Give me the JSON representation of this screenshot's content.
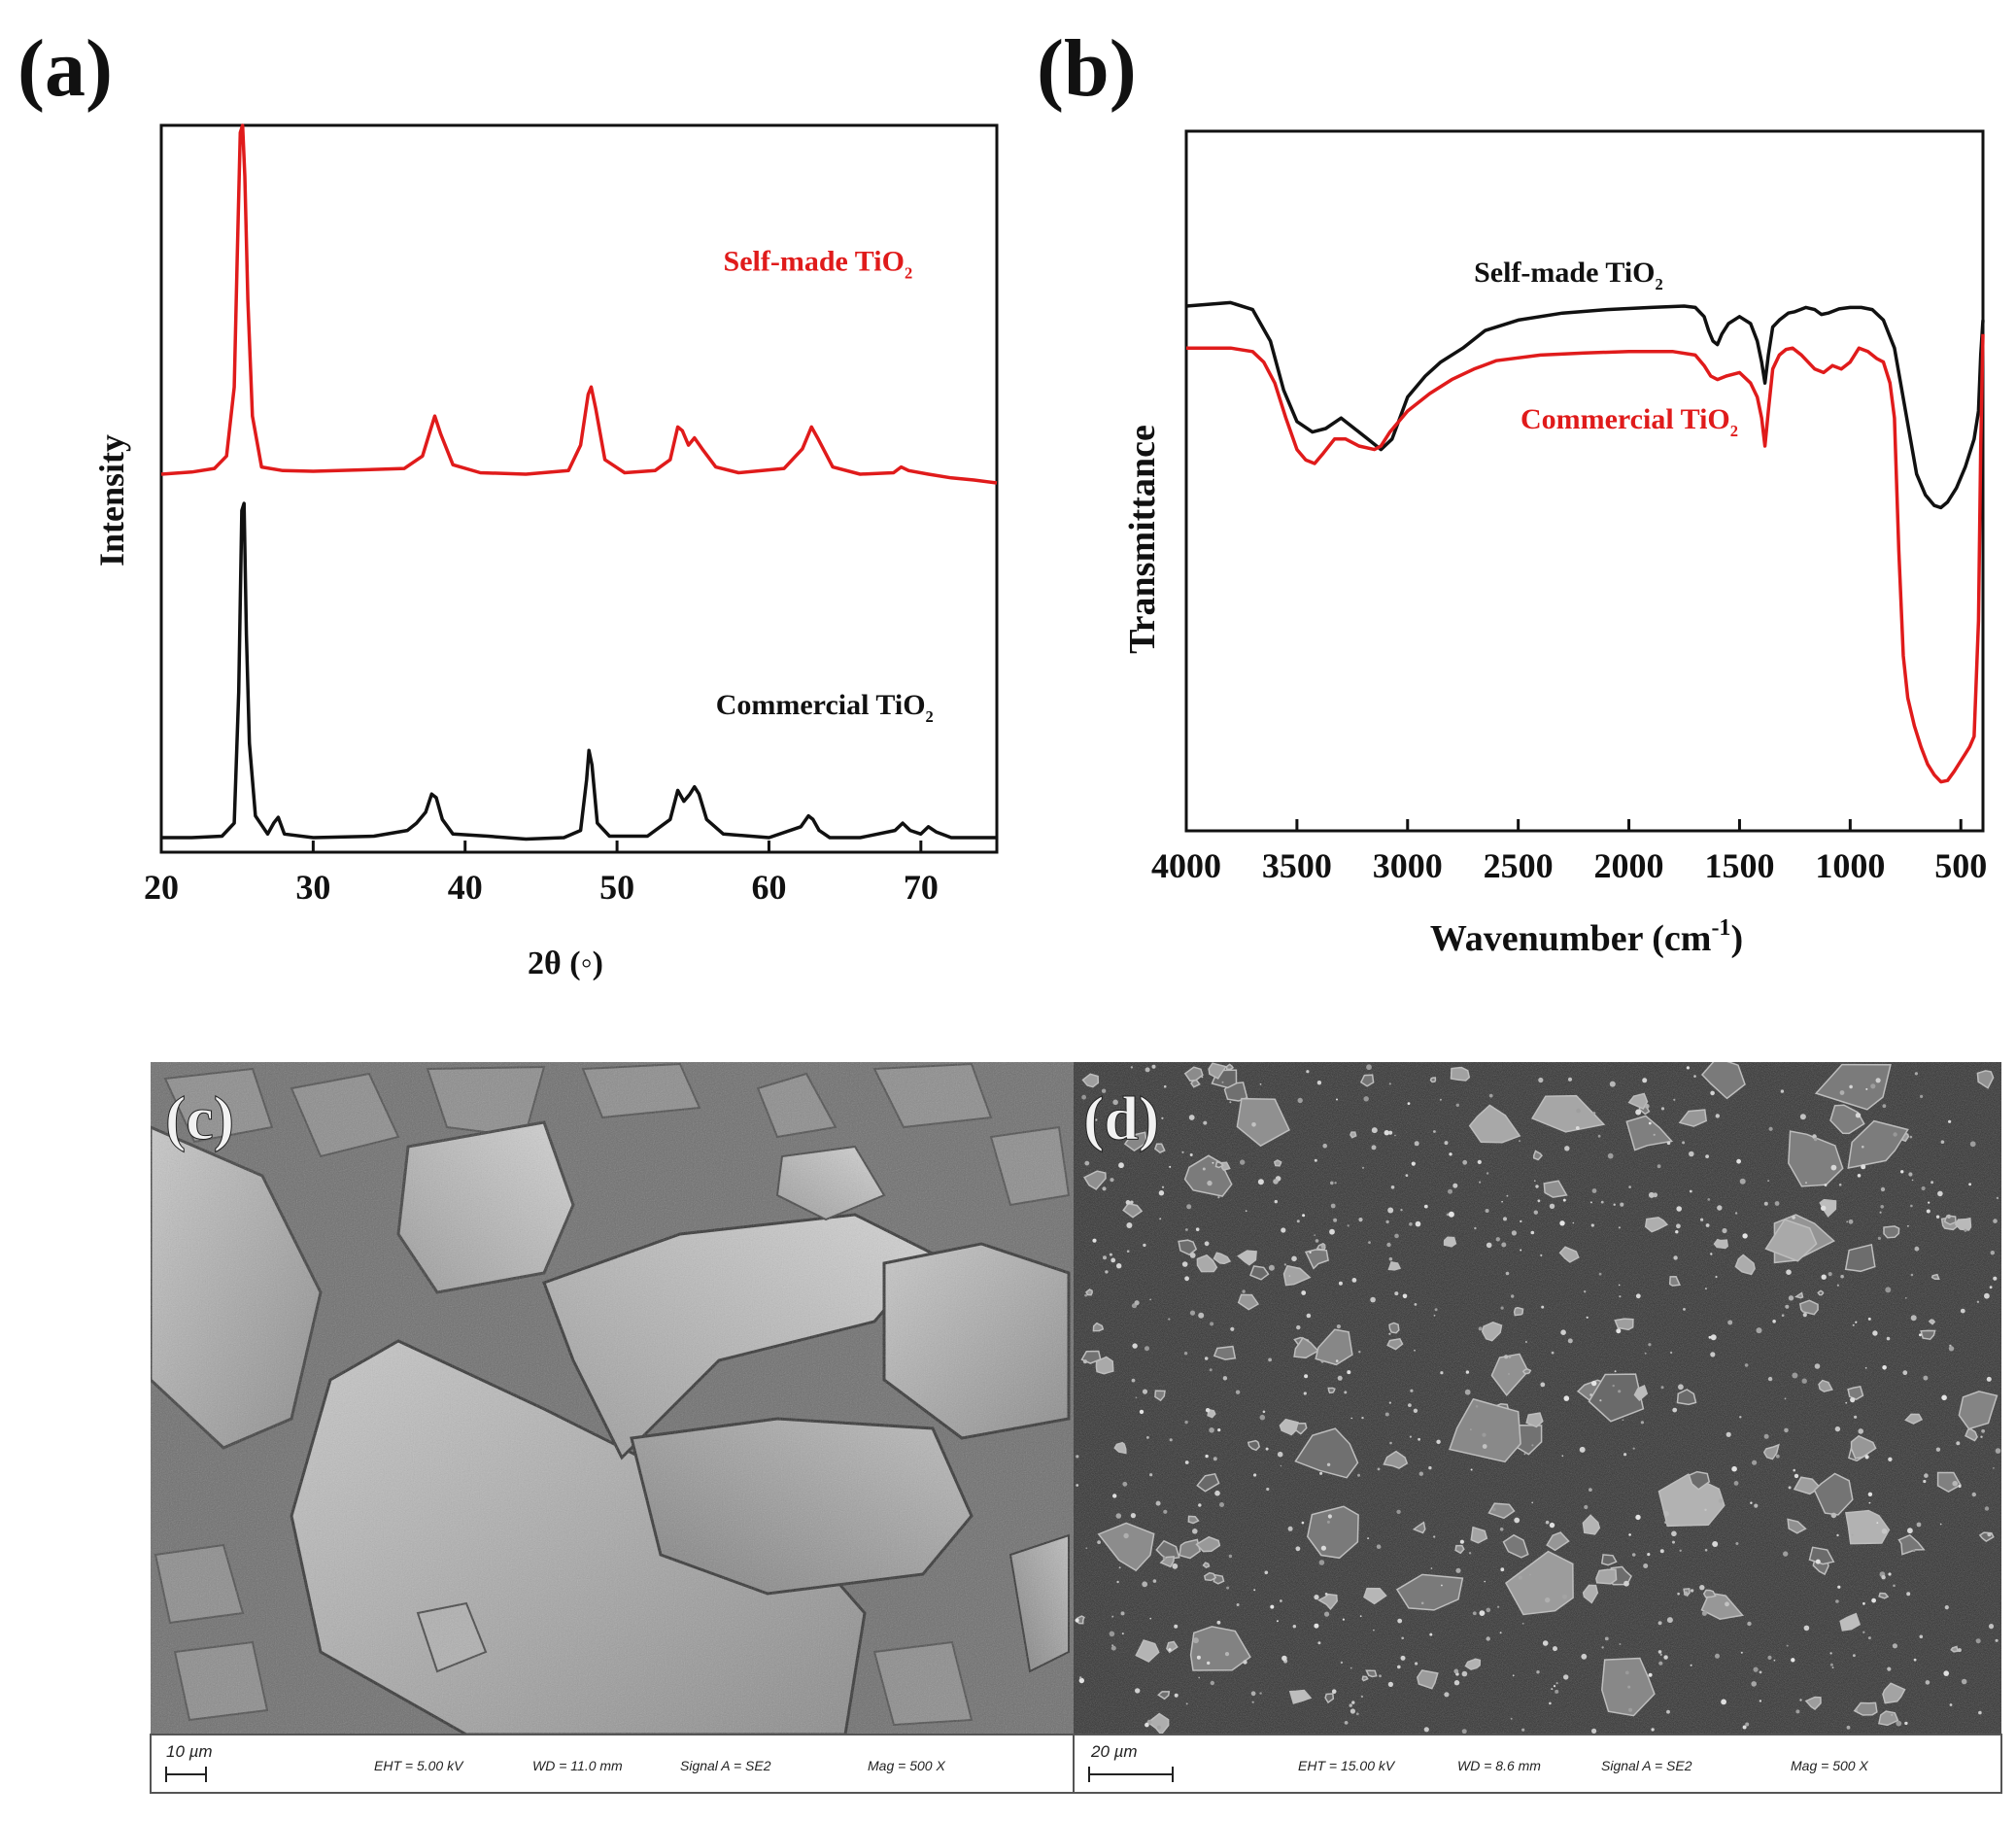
{
  "panels": {
    "a": {
      "label": "(a)"
    },
    "b": {
      "label": "(b)"
    },
    "c": {
      "label": "(c)"
    },
    "d": {
      "label": "(d)"
    }
  },
  "chart_data": [
    {
      "type": "line",
      "panel": "a",
      "xlabel": "2θ (◦)",
      "ylabel": "Intensity",
      "xlim": [
        20,
        75
      ],
      "xticks": [
        20,
        30,
        40,
        50,
        60,
        70
      ],
      "y_ticks_shown": false,
      "grid": false,
      "series": [
        {
          "name": "Self-made TiO₂",
          "label_main": "Self-made TiO",
          "label_sub": "2",
          "color": "#e01b1b",
          "label_x": 57.0,
          "label_y": 0.8,
          "x": [
            20,
            22,
            23.5,
            24.3,
            24.8,
            25.0,
            25.2,
            25.35,
            25.5,
            25.7,
            26.0,
            26.6,
            28,
            30,
            33,
            36,
            37.2,
            37.7,
            38.0,
            38.4,
            39.2,
            41,
            44,
            46.8,
            47.6,
            48.1,
            48.3,
            48.6,
            49.2,
            50.5,
            52.5,
            53.5,
            54.0,
            54.3,
            54.7,
            55.1,
            55.6,
            56.5,
            58,
            61,
            62.2,
            62.8,
            63.2,
            64.2,
            66,
            68.2,
            68.7,
            69.2,
            70.5,
            72,
            73.5,
            75
          ],
          "y": [
            0.52,
            0.523,
            0.528,
            0.545,
            0.64,
            0.82,
            0.99,
            1.0,
            0.93,
            0.76,
            0.6,
            0.53,
            0.525,
            0.524,
            0.526,
            0.528,
            0.545,
            0.58,
            0.6,
            0.575,
            0.533,
            0.522,
            0.52,
            0.525,
            0.56,
            0.63,
            0.64,
            0.61,
            0.54,
            0.522,
            0.525,
            0.54,
            0.585,
            0.58,
            0.56,
            0.57,
            0.555,
            0.53,
            0.522,
            0.528,
            0.555,
            0.585,
            0.57,
            0.53,
            0.52,
            0.522,
            0.53,
            0.525,
            0.52,
            0.515,
            0.512,
            0.508
          ]
        },
        {
          "name": "Commercial TiO₂",
          "label_main": "Commercial TiO",
          "label_sub": "2",
          "color": "#111111",
          "label_x": 56.5,
          "label_y": 0.19,
          "x": [
            20,
            22,
            24,
            24.8,
            25.1,
            25.3,
            25.45,
            25.6,
            25.8,
            26.2,
            27,
            27.4,
            27.7,
            28.1,
            30,
            34,
            36.2,
            36.8,
            37.4,
            37.8,
            38.1,
            38.5,
            39.2,
            41.5,
            44,
            46.5,
            47.6,
            48.0,
            48.15,
            48.35,
            48.7,
            49.5,
            52,
            53.5,
            54.0,
            54.4,
            54.8,
            55.1,
            55.4,
            55.9,
            57,
            60,
            62.1,
            62.6,
            62.9,
            63.3,
            64,
            66,
            68.3,
            68.8,
            69.3,
            70.0,
            70.5,
            71.0,
            72,
            73.5,
            75
          ],
          "y": [
            0.02,
            0.02,
            0.022,
            0.04,
            0.22,
            0.47,
            0.48,
            0.3,
            0.15,
            0.05,
            0.025,
            0.04,
            0.048,
            0.025,
            0.02,
            0.022,
            0.03,
            0.04,
            0.055,
            0.08,
            0.075,
            0.045,
            0.025,
            0.022,
            0.018,
            0.02,
            0.03,
            0.1,
            0.14,
            0.12,
            0.04,
            0.022,
            0.022,
            0.045,
            0.085,
            0.07,
            0.08,
            0.09,
            0.08,
            0.045,
            0.025,
            0.02,
            0.035,
            0.05,
            0.045,
            0.03,
            0.02,
            0.02,
            0.03,
            0.04,
            0.03,
            0.025,
            0.035,
            0.028,
            0.02,
            0.02,
            0.02
          ]
        }
      ]
    },
    {
      "type": "line",
      "panel": "b",
      "xlabel_main": "Wavenumber (cm",
      "xlabel_sup": "-1",
      "xlabel_end": ")",
      "ylabel": "Transmittance",
      "xlim": [
        4000,
        400
      ],
      "x_reversed": true,
      "xticks": [
        4000,
        3500,
        3000,
        2500,
        2000,
        1500,
        1000,
        500
      ],
      "y_ticks_shown": false,
      "grid": false,
      "series": [
        {
          "name": "Self-made TiO₂",
          "label_main": "Self-made TiO",
          "label_sub": "2",
          "color": "#111111",
          "label_x": 2700,
          "label_y": 0.785,
          "x": [
            4000,
            3800,
            3700,
            3620,
            3560,
            3500,
            3430,
            3370,
            3300,
            3240,
            3180,
            3120,
            3070,
            3000,
            2920,
            2850,
            2750,
            2650,
            2500,
            2300,
            2100,
            1900,
            1750,
            1700,
            1660,
            1640,
            1620,
            1600,
            1580,
            1550,
            1500,
            1450,
            1420,
            1400,
            1385,
            1370,
            1350,
            1320,
            1280,
            1250,
            1200,
            1160,
            1130,
            1100,
            1050,
            1000,
            950,
            900,
            850,
            800,
            750,
            700,
            660,
            620,
            590,
            560,
            520,
            480,
            440,
            420,
            410,
            400
          ],
          "y": [
            0.75,
            0.755,
            0.745,
            0.7,
            0.63,
            0.585,
            0.57,
            0.575,
            0.59,
            0.575,
            0.56,
            0.545,
            0.56,
            0.62,
            0.65,
            0.67,
            0.69,
            0.715,
            0.73,
            0.74,
            0.745,
            0.748,
            0.75,
            0.748,
            0.735,
            0.715,
            0.7,
            0.695,
            0.71,
            0.725,
            0.735,
            0.725,
            0.7,
            0.67,
            0.64,
            0.68,
            0.72,
            0.73,
            0.74,
            0.742,
            0.748,
            0.745,
            0.738,
            0.74,
            0.746,
            0.748,
            0.748,
            0.745,
            0.73,
            0.69,
            0.6,
            0.51,
            0.48,
            0.465,
            0.462,
            0.47,
            0.49,
            0.52,
            0.56,
            0.6,
            0.68,
            0.73
          ]
        },
        {
          "name": "Commercial TiO₂",
          "label_main": "Commercial TiO",
          "label_sub": "2",
          "color": "#e01b1b",
          "label_x": 2490,
          "label_y": 0.575,
          "x": [
            4000,
            3800,
            3700,
            3650,
            3600,
            3550,
            3500,
            3460,
            3420,
            3380,
            3330,
            3280,
            3220,
            3150,
            3120,
            3080,
            3000,
            2900,
            2800,
            2700,
            2600,
            2400,
            2200,
            2000,
            1800,
            1700,
            1660,
            1630,
            1600,
            1560,
            1500,
            1450,
            1420,
            1400,
            1385,
            1370,
            1350,
            1320,
            1290,
            1260,
            1220,
            1160,
            1120,
            1080,
            1040,
            1000,
            960,
            920,
            880,
            850,
            820,
            800,
            780,
            760,
            740,
            710,
            680,
            650,
            620,
            590,
            560,
            530,
            500,
            480,
            460,
            440,
            420,
            410,
            400
          ],
          "y": [
            0.69,
            0.69,
            0.685,
            0.67,
            0.64,
            0.59,
            0.545,
            0.53,
            0.525,
            0.54,
            0.56,
            0.56,
            0.55,
            0.545,
            0.55,
            0.57,
            0.6,
            0.625,
            0.645,
            0.66,
            0.672,
            0.68,
            0.683,
            0.685,
            0.685,
            0.68,
            0.665,
            0.65,
            0.645,
            0.65,
            0.655,
            0.64,
            0.62,
            0.59,
            0.55,
            0.6,
            0.66,
            0.68,
            0.688,
            0.69,
            0.68,
            0.66,
            0.655,
            0.665,
            0.66,
            0.67,
            0.69,
            0.685,
            0.675,
            0.67,
            0.64,
            0.59,
            0.4,
            0.25,
            0.19,
            0.15,
            0.12,
            0.095,
            0.08,
            0.07,
            0.072,
            0.085,
            0.1,
            0.11,
            0.12,
            0.135,
            0.3,
            0.55,
            0.71
          ]
        }
      ]
    }
  ],
  "sem": {
    "c": {
      "scale": "10 µm",
      "eht": "EHT =  5.00 kV",
      "wd": "WD = 11.0 mm",
      "signal": "Signal A = SE2",
      "mag": "Mag =    500 X"
    },
    "d": {
      "scale": "20 µm",
      "eht": "EHT = 15.00 kV",
      "wd": "WD =  8.6 mm",
      "signal": "Signal A = SE2",
      "mag": "Mag =    500 X"
    }
  }
}
